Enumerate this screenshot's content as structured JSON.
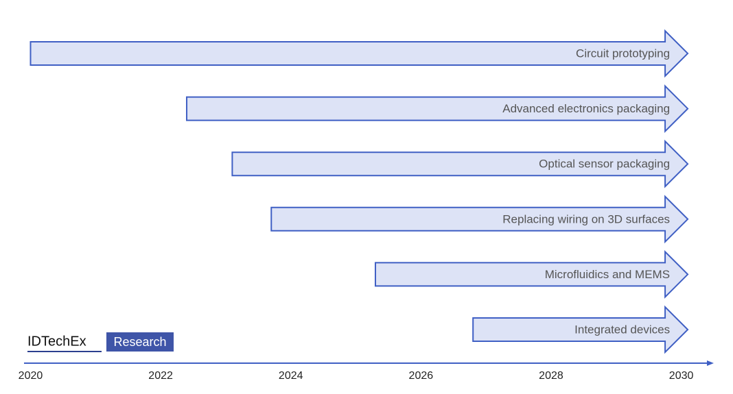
{
  "chart_data": {
    "type": "timeline",
    "categories": [
      "Circuit prototyping",
      "Advanced electronics packaging",
      "Optical sensor packaging",
      "Replacing wiring on 3D surfaces",
      "Microfluidics and MEMS",
      "Integrated devices"
    ],
    "start": [
      2020,
      2022.4,
      2023.1,
      2023.7,
      2025.3,
      2026.8
    ],
    "end": [
      2030.1,
      2030.1,
      2030.1,
      2030.1,
      2030.1,
      2030.1
    ],
    "color": "#dde3f6",
    "edge_color": "#3f5fc4",
    "xlim": [
      2019.9,
      2030.5
    ],
    "xticks": [
      2020,
      2022,
      2024,
      2026,
      2028,
      2030
    ],
    "logo": {
      "brand": "IDTechEx",
      "tag": "Research"
    }
  }
}
